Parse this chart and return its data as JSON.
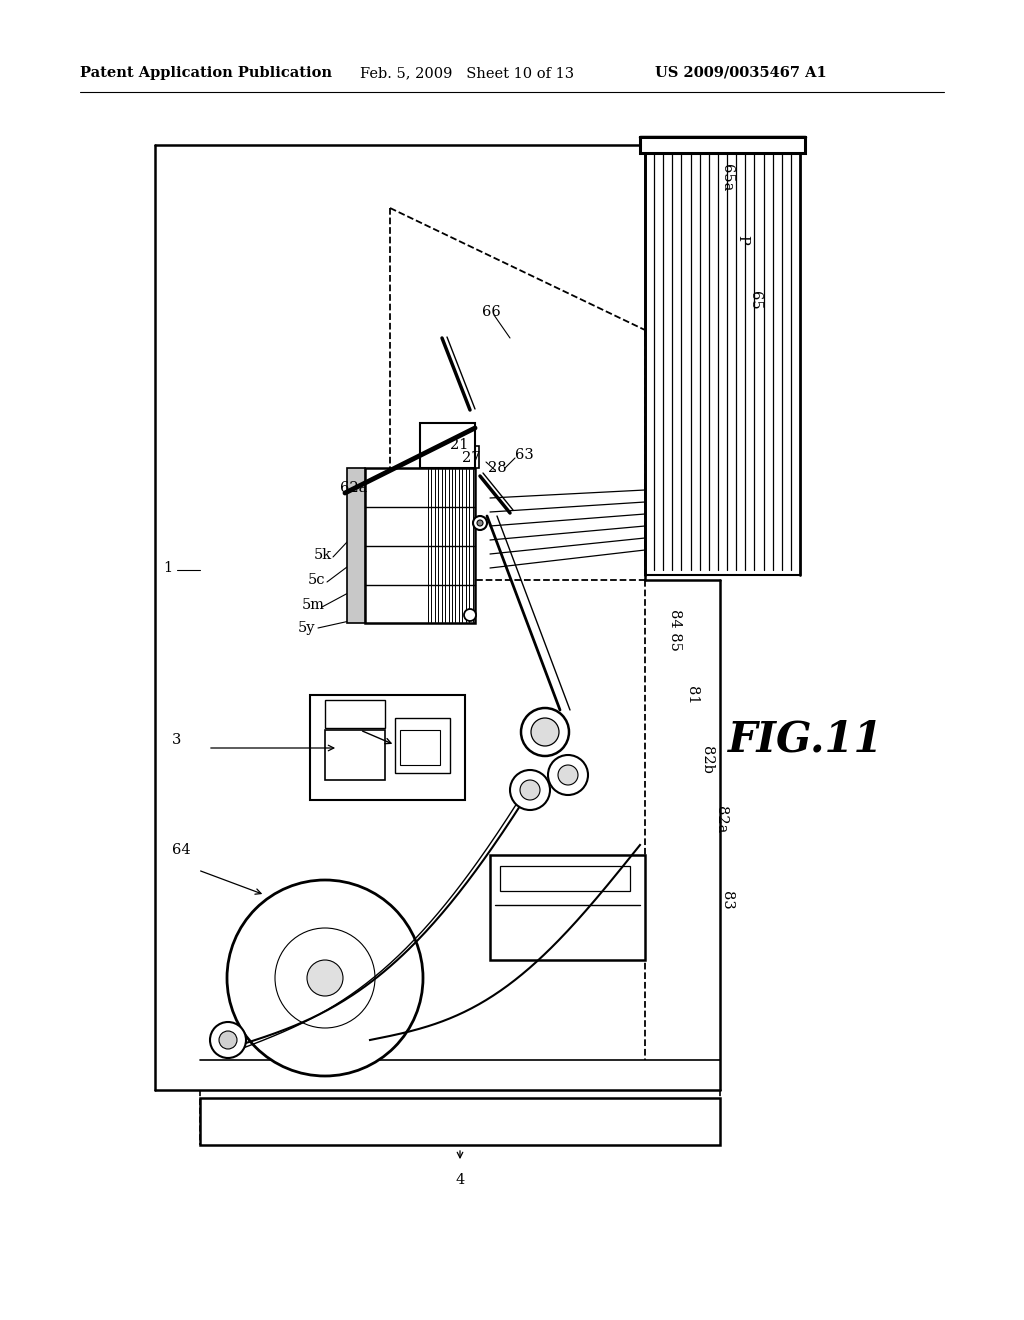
{
  "bg_color": "#ffffff",
  "header_left": "Patent Application Publication",
  "header_mid": "Feb. 5, 2009   Sheet 10 of 13",
  "header_right": "US 2009/0035467 A1",
  "fig_label": "FIG.11",
  "header_fontsize": 10.5,
  "label_fontsize": 10.5
}
